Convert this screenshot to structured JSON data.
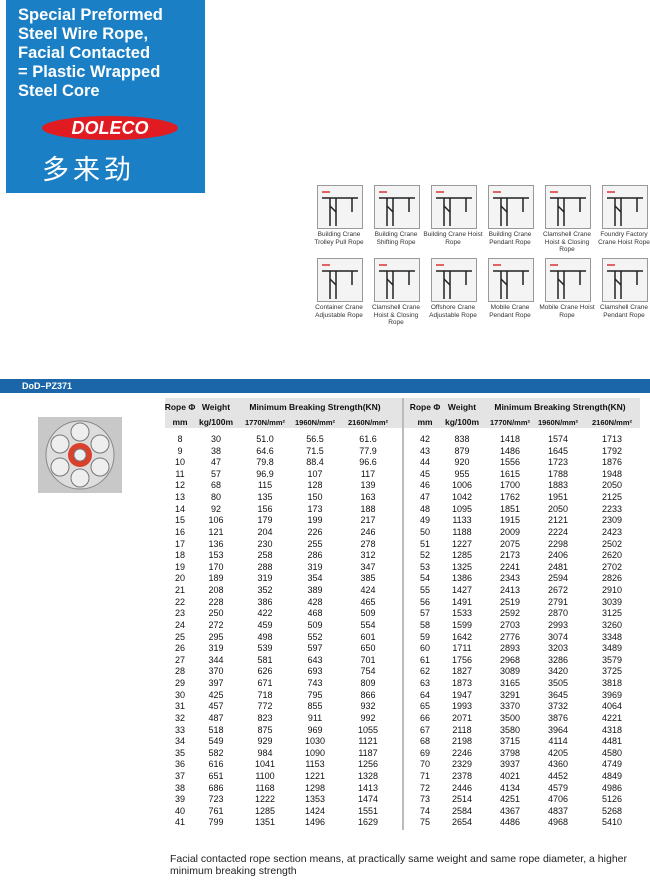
{
  "header": {
    "title_lines": [
      "Special Preformed",
      "Steel Wire Rope,",
      "Facial Contacted",
      "= Plastic Wrapped",
      "Steel Core"
    ],
    "logo": "DOLECO",
    "chinese": "多来劲"
  },
  "applications": [
    "Building Crane Trolley Pull Rope",
    "Building Crane Shifting Rope",
    "Building Crane Hoist Rope",
    "Building Crane Pendant Rope",
    "Clamshell Crane Hoist & Closing Rope",
    "Foundry Factory Crane Hoist Rope",
    "Container Crane Adjustable Rope",
    "Clamshell Crane Hoist & Closing Rope",
    "Offshore Crane Adjustable Rope",
    "Mobile Crane Pendant Rope",
    "Mobile Crane Hoist Rope",
    "Clamshell Crane Pendant Rope"
  ],
  "section_title": "DoD–PZ371",
  "table": {
    "header_top": [
      "Rope Φ",
      "Weight",
      "Minimum Breaking Strength(KN)"
    ],
    "header_bottom": [
      "mm",
      "kg/100m",
      "1770N/mm²",
      "1960N/mm²",
      "2160N/mm²"
    ],
    "left_rows": [
      [
        "8",
        "30",
        "51.0",
        "56.5",
        "61.6"
      ],
      [
        "9",
        "38",
        "64.6",
        "71.5",
        "77.9"
      ],
      [
        "10",
        "47",
        "79.8",
        "88.4",
        "96.6"
      ],
      [
        "11",
        "57",
        "96.9",
        "107",
        "117"
      ],
      [
        "12",
        "68",
        "115",
        "128",
        "139"
      ],
      [
        "13",
        "80",
        "135",
        "150",
        "163"
      ],
      [
        "14",
        "92",
        "156",
        "173",
        "188"
      ],
      [
        "15",
        "106",
        "179",
        "199",
        "217"
      ],
      [
        "16",
        "121",
        "204",
        "226",
        "246"
      ],
      [
        "17",
        "136",
        "230",
        "255",
        "278"
      ],
      [
        "18",
        "153",
        "258",
        "286",
        "312"
      ],
      [
        "19",
        "170",
        "288",
        "319",
        "347"
      ],
      [
        "20",
        "189",
        "319",
        "354",
        "385"
      ],
      [
        "21",
        "208",
        "352",
        "389",
        "424"
      ],
      [
        "22",
        "228",
        "386",
        "428",
        "465"
      ],
      [
        "23",
        "250",
        "422",
        "468",
        "509"
      ],
      [
        "24",
        "272",
        "459",
        "509",
        "554"
      ],
      [
        "25",
        "295",
        "498",
        "552",
        "601"
      ],
      [
        "26",
        "319",
        "539",
        "597",
        "650"
      ],
      [
        "27",
        "344",
        "581",
        "643",
        "701"
      ],
      [
        "28",
        "370",
        "626",
        "693",
        "754"
      ],
      [
        "29",
        "397",
        "671",
        "743",
        "809"
      ],
      [
        "30",
        "425",
        "718",
        "795",
        "866"
      ],
      [
        "31",
        "457",
        "772",
        "855",
        "932"
      ],
      [
        "32",
        "487",
        "823",
        "911",
        "992"
      ],
      [
        "33",
        "518",
        "875",
        "969",
        "1055"
      ],
      [
        "34",
        "549",
        "929",
        "1030",
        "1121"
      ],
      [
        "35",
        "582",
        "984",
        "1090",
        "1187"
      ],
      [
        "36",
        "616",
        "1041",
        "1153",
        "1256"
      ],
      [
        "37",
        "651",
        "1100",
        "1221",
        "1328"
      ],
      [
        "38",
        "686",
        "1168",
        "1298",
        "1413"
      ],
      [
        "39",
        "723",
        "1222",
        "1353",
        "1474"
      ],
      [
        "40",
        "761",
        "1285",
        "1424",
        "1551"
      ],
      [
        "41",
        "799",
        "1351",
        "1496",
        "1629"
      ]
    ],
    "right_rows": [
      [
        "42",
        "838",
        "1418",
        "1574",
        "1713"
      ],
      [
        "43",
        "879",
        "1486",
        "1645",
        "1792"
      ],
      [
        "44",
        "920",
        "1556",
        "1723",
        "1876"
      ],
      [
        "45",
        "955",
        "1615",
        "1788",
        "1948"
      ],
      [
        "46",
        "1006",
        "1700",
        "1883",
        "2050"
      ],
      [
        "47",
        "1042",
        "1762",
        "1951",
        "2125"
      ],
      [
        "48",
        "1095",
        "1851",
        "2050",
        "2233"
      ],
      [
        "49",
        "1133",
        "1915",
        "2121",
        "2309"
      ],
      [
        "50",
        "1188",
        "2009",
        "2224",
        "2423"
      ],
      [
        "51",
        "1227",
        "2075",
        "2298",
        "2502"
      ],
      [
        "52",
        "1285",
        "2173",
        "2406",
        "2620"
      ],
      [
        "53",
        "1325",
        "2241",
        "2481",
        "2702"
      ],
      [
        "54",
        "1386",
        "2343",
        "2594",
        "2826"
      ],
      [
        "55",
        "1427",
        "2413",
        "2672",
        "2910"
      ],
      [
        "56",
        "1491",
        "2519",
        "2791",
        "3039"
      ],
      [
        "57",
        "1533",
        "2592",
        "2870",
        "3125"
      ],
      [
        "58",
        "1599",
        "2703",
        "2993",
        "3260"
      ],
      [
        "59",
        "1642",
        "2776",
        "3074",
        "3348"
      ],
      [
        "60",
        "1711",
        "2893",
        "3203",
        "3489"
      ],
      [
        "61",
        "1756",
        "2968",
        "3286",
        "3579"
      ],
      [
        "62",
        "1827",
        "3089",
        "3420",
        "3725"
      ],
      [
        "63",
        "1873",
        "3165",
        "3505",
        "3818"
      ],
      [
        "64",
        "1947",
        "3291",
        "3645",
        "3969"
      ],
      [
        "65",
        "1993",
        "3370",
        "3732",
        "4064"
      ],
      [
        "66",
        "2071",
        "3500",
        "3876",
        "4221"
      ],
      [
        "67",
        "2118",
        "3580",
        "3964",
        "4318"
      ],
      [
        "68",
        "2198",
        "3715",
        "4114",
        "4481"
      ],
      [
        "69",
        "2246",
        "3798",
        "4205",
        "4580"
      ],
      [
        "70",
        "2329",
        "3937",
        "4360",
        "4749"
      ],
      [
        "71",
        "2378",
        "4021",
        "4452",
        "4849"
      ],
      [
        "72",
        "2446",
        "4134",
        "4579",
        "4986"
      ],
      [
        "73",
        "2514",
        "4251",
        "4706",
        "5126"
      ],
      [
        "74",
        "2584",
        "4367",
        "4837",
        "5268"
      ],
      [
        "75",
        "2654",
        "4486",
        "4968",
        "5410"
      ]
    ]
  },
  "footer": "Facial contacted rope section means, at practically same weight and same rope diameter, a higher minimum breaking strength"
}
